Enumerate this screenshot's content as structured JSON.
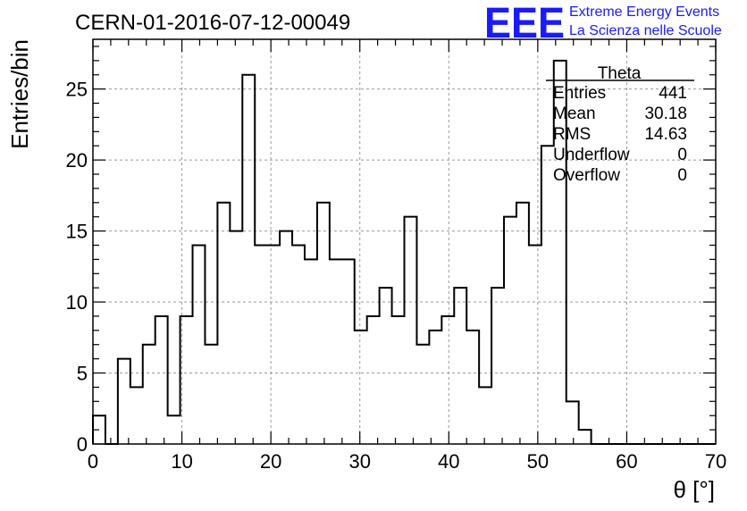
{
  "chart_data": {
    "type": "bar",
    "style": "histogram-step",
    "title": "CERN-01-2016-07-12-00049",
    "xlabel": "θ [°]",
    "ylabel": "Entries/bin",
    "xlim": [
      0,
      70
    ],
    "ylim": [
      0,
      28.5
    ],
    "bin_width": 1.4,
    "x_ticks": [
      0,
      10,
      20,
      30,
      40,
      50,
      60,
      70
    ],
    "y_ticks": [
      0,
      5,
      10,
      15,
      20,
      25
    ],
    "grid": true,
    "values": [
      2,
      0,
      6,
      4,
      7,
      9,
      2,
      9,
      14,
      7,
      17,
      15,
      26,
      14,
      14,
      15,
      14,
      13,
      17,
      13,
      13,
      8,
      9,
      11,
      9,
      16,
      7,
      8,
      9,
      11,
      8,
      4,
      11,
      16,
      17,
      14,
      21,
      27,
      3,
      1,
      0,
      0,
      0,
      0,
      0,
      0,
      0,
      0,
      0,
      0
    ],
    "line_color": "#000000"
  },
  "stats_box": {
    "title": "Theta",
    "rows": [
      {
        "label": "Entries",
        "value": "441"
      },
      {
        "label": "Mean",
        "value": "30.18"
      },
      {
        "label": "RMS",
        "value": "14.63"
      },
      {
        "label": "Underflow",
        "value": "0"
      },
      {
        "label": "Overflow",
        "value": "0"
      }
    ]
  },
  "logo": {
    "mark": "EEE",
    "line1": "Extreme Energy Events",
    "line2": "La Scienza nelle Scuole",
    "color": "#1a1aff"
  }
}
